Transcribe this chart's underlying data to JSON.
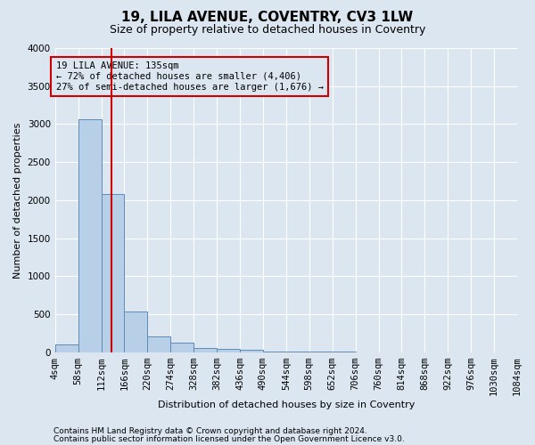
{
  "title": "19, LILA AVENUE, COVENTRY, CV3 1LW",
  "subtitle": "Size of property relative to detached houses in Coventry",
  "xlabel": "Distribution of detached houses by size in Coventry",
  "ylabel": "Number of detached properties",
  "bar_color": "#b8cfe8",
  "bar_edge_color": "#5f8ab8",
  "bg_color": "#dce6f0",
  "grid_color": "#ffffff",
  "annotation_box_color": "#cc0000",
  "vline_color": "#cc0000",
  "vline_x": 135,
  "annotation_text": "19 LILA AVENUE: 135sqm\n← 72% of detached houses are smaller (4,406)\n27% of semi-detached houses are larger (1,676) →",
  "bin_edges": [
    4,
    58,
    112,
    166,
    220,
    274,
    328,
    382,
    436,
    490,
    544,
    598,
    652,
    706,
    760,
    814,
    868,
    922,
    976,
    1030,
    1084
  ],
  "bin_values": [
    100,
    3060,
    2080,
    540,
    210,
    130,
    60,
    50,
    30,
    10,
    5,
    5,
    5,
    0,
    0,
    0,
    0,
    0,
    0,
    0
  ],
  "ylim": [
    0,
    4000
  ],
  "yticks": [
    0,
    500,
    1000,
    1500,
    2000,
    2500,
    3000,
    3500,
    4000
  ],
  "footer_line1": "Contains HM Land Registry data © Crown copyright and database right 2024.",
  "footer_line2": "Contains public sector information licensed under the Open Government Licence v3.0.",
  "title_fontsize": 11,
  "subtitle_fontsize": 9,
  "axis_label_fontsize": 8,
  "tick_fontsize": 7.5,
  "annotation_fontsize": 7.5,
  "footer_fontsize": 6.5
}
